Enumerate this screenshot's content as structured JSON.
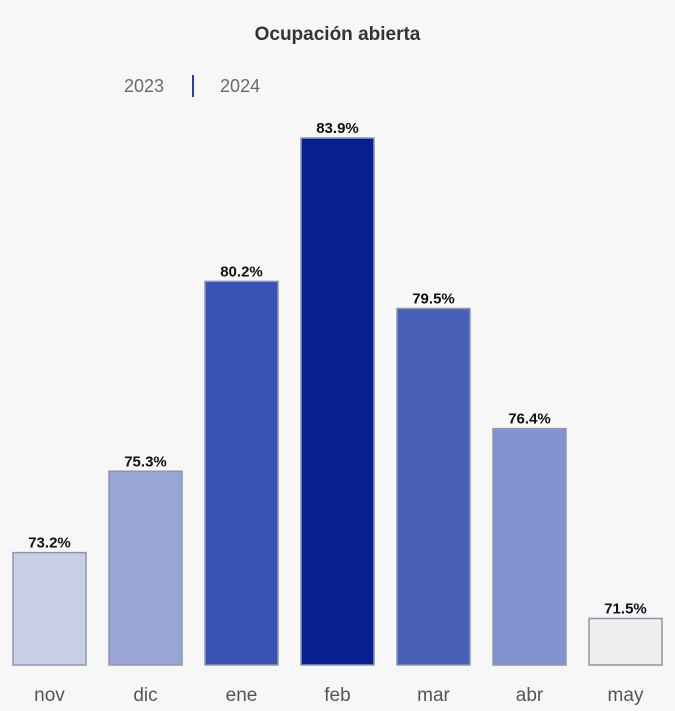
{
  "chart_data": {
    "type": "bar",
    "title": "Ocupación abierta",
    "legend": [
      "2023",
      "2024"
    ],
    "legend_position": "top-left",
    "categories": [
      "nov",
      "dic",
      "ene",
      "feb",
      "mar",
      "abr",
      "may"
    ],
    "values": [
      73.2,
      75.3,
      80.2,
      83.9,
      79.5,
      76.4,
      71.5
    ],
    "value_labels": [
      "73.2%",
      "75.3%",
      "80.2%",
      "83.9%",
      "79.5%",
      "76.4%",
      "71.5%"
    ],
    "colors": [
      "#c9cfe7",
      "#98a5d5",
      "#3a52b3",
      "#06208f",
      "#4860b7",
      "#8294cf",
      "#efefef"
    ],
    "border_color": "#8f96ac",
    "ylim": [
      70.3,
      83.9
    ],
    "grid": false,
    "xlabel": "",
    "ylabel": ""
  }
}
